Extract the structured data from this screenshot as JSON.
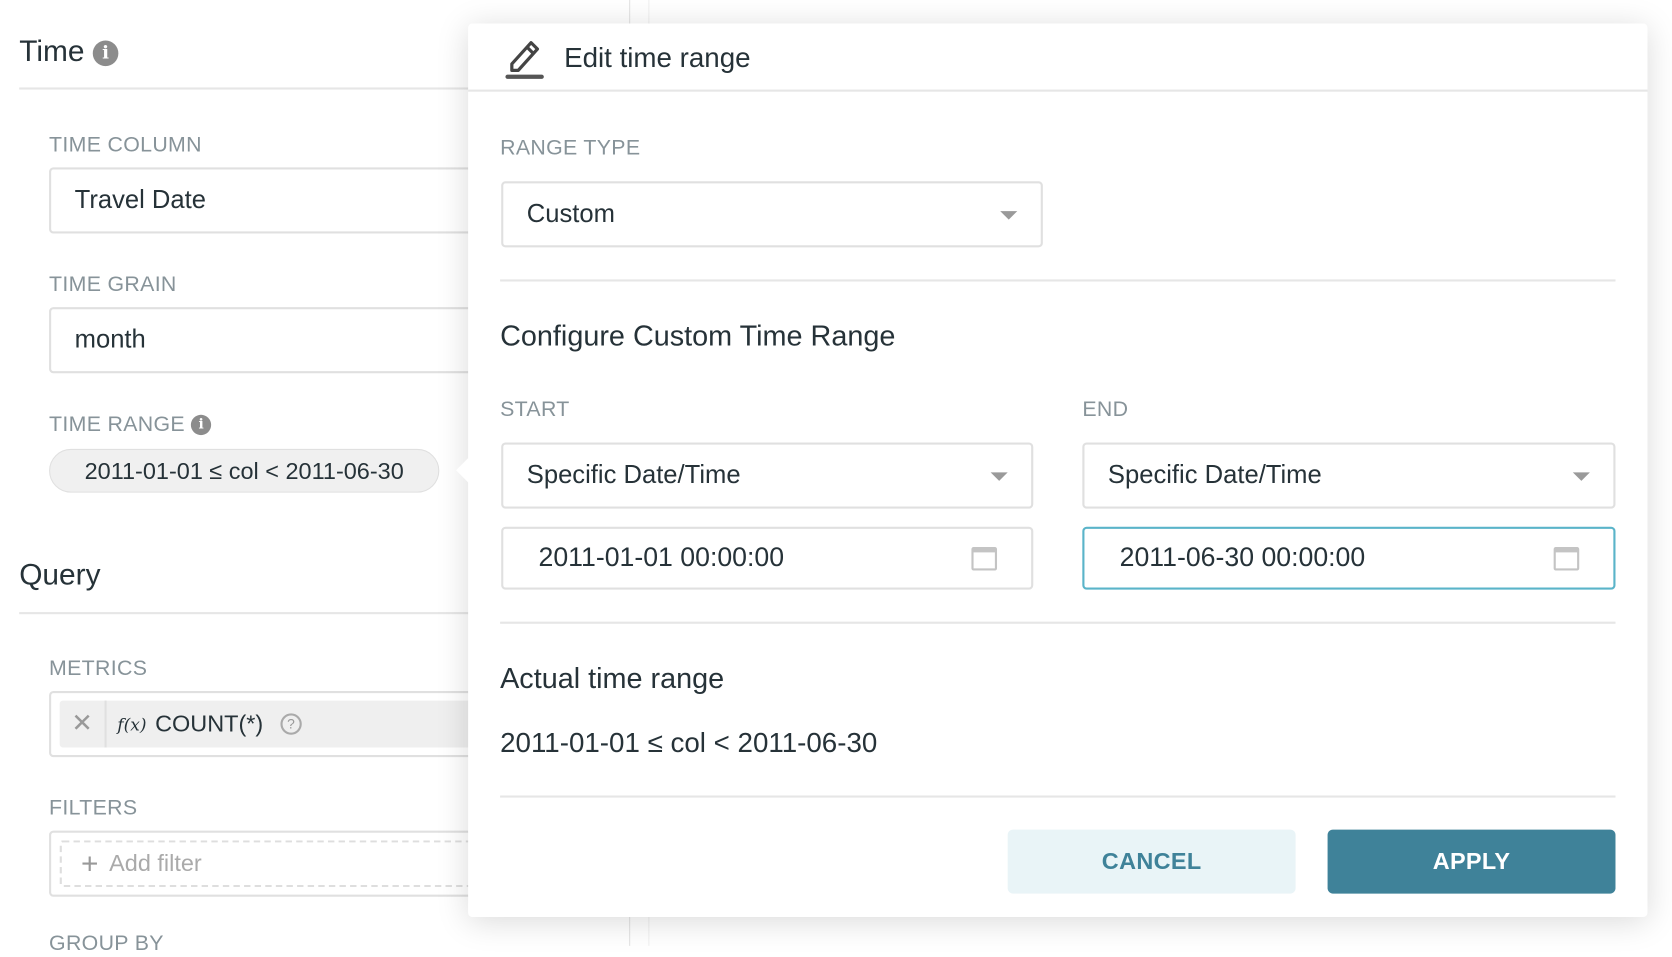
{
  "left": {
    "time_title": "Time",
    "time_column_label": "TIME COLUMN",
    "time_column_value": "Travel Date",
    "time_grain_label": "TIME GRAIN",
    "time_grain_value": "month",
    "time_range_label": "TIME RANGE",
    "time_range_value": "2011-01-01 ≤ col < 2011-06-30",
    "query_title": "Query",
    "metrics_label": "METRICS",
    "metric_fx": "f(x)",
    "metric_value": "COUNT(*)",
    "filters_label": "FILTERS",
    "add_filter": "Add filter",
    "group_by_label": "GROUP BY"
  },
  "popover": {
    "title": "Edit time range",
    "range_type_label": "RANGE TYPE",
    "range_type_value": "Custom",
    "section_title": "Configure Custom Time Range",
    "start_label": "START",
    "end_label": "END",
    "start_mode": "Specific Date/Time",
    "end_mode": "Specific Date/Time",
    "start_value": "2011-01-01 00:00:00",
    "end_value": "2011-06-30 00:00:00",
    "actual_title": "Actual time range",
    "actual_value": "2011-01-01 ≤ col < 2011-06-30",
    "cancel": "CANCEL",
    "apply": "APPLY"
  },
  "colors": {
    "primary": "#3F8299",
    "primary_light": "#E9F4F7",
    "focus_border": "#5AB4C9"
  }
}
